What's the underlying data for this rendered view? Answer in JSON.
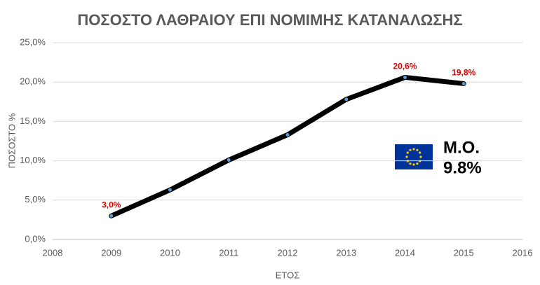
{
  "chart_data": {
    "type": "line",
    "title": "ΠΟΣΟΣΤΟ ΛΑΘΡΑΙΟΥ ΕΠΙ ΝΟΜΙΜΗΣ ΚΑΤΑΝΑΛΩΣΗΣ",
    "x_label": "ΕΤΟΣ",
    "y_label": "ΠΟΣΟΣΤΟ %",
    "x": [
      2009,
      2010,
      2011,
      2012,
      2013,
      2014,
      2015
    ],
    "values": [
      3.0,
      6.3,
      10.1,
      13.3,
      17.8,
      20.6,
      19.8
    ],
    "value_labels": [
      "3,0%",
      null,
      null,
      null,
      null,
      "20,6%",
      "19,8%"
    ],
    "color": "#000000",
    "marker_color": "#5b9bd5",
    "label_color": "#e00000",
    "xlim": [
      2008,
      2016
    ],
    "xticks": [
      2008,
      2009,
      2010,
      2011,
      2012,
      2013,
      2014,
      2015,
      2016
    ],
    "ylim": [
      0,
      25
    ],
    "yticks": [
      {
        "value": 0,
        "label": "0,0%"
      },
      {
        "value": 5,
        "label": "5,0%"
      },
      {
        "value": 10,
        "label": "10,0%"
      },
      {
        "value": 15,
        "label": "15,0%"
      },
      {
        "value": 20,
        "label": "20,0%"
      },
      {
        "value": 25,
        "label": "25,0%"
      }
    ],
    "grid": true,
    "annotations": [
      "Μ.Ο.",
      "9.8%"
    ]
  }
}
